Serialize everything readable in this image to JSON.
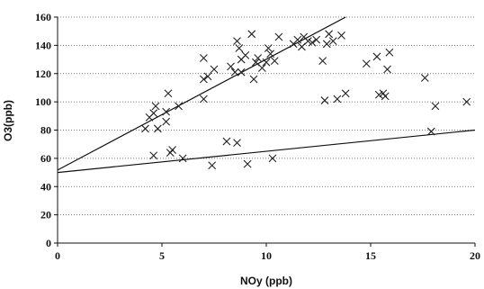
{
  "chart_data": {
    "type": "scatter",
    "title": "",
    "xlabel": "NOy  (ppb)",
    "ylabel": "O3(ppb)",
    "xlim": [
      0,
      20
    ],
    "ylim": [
      0,
      160
    ],
    "x_ticks": [
      0,
      5,
      10,
      15,
      20
    ],
    "y_ticks": [
      0,
      20,
      40,
      60,
      80,
      100,
      120,
      140,
      160
    ],
    "grid": "horizontal dotted",
    "marker": "x",
    "points": [
      {
        "x": 4.2,
        "y": 81
      },
      {
        "x": 4.4,
        "y": 89
      },
      {
        "x": 4.6,
        "y": 92
      },
      {
        "x": 4.6,
        "y": 62
      },
      {
        "x": 4.7,
        "y": 97
      },
      {
        "x": 4.8,
        "y": 81
      },
      {
        "x": 5.2,
        "y": 86
      },
      {
        "x": 5.2,
        "y": 93
      },
      {
        "x": 5.3,
        "y": 106
      },
      {
        "x": 5.4,
        "y": 64
      },
      {
        "x": 5.5,
        "y": 66
      },
      {
        "x": 5.8,
        "y": 97
      },
      {
        "x": 6.0,
        "y": 60
      },
      {
        "x": 7.0,
        "y": 131
      },
      {
        "x": 7.0,
        "y": 116
      },
      {
        "x": 7.0,
        "y": 102
      },
      {
        "x": 7.2,
        "y": 118
      },
      {
        "x": 7.4,
        "y": 55
      },
      {
        "x": 7.5,
        "y": 123
      },
      {
        "x": 8.1,
        "y": 72
      },
      {
        "x": 8.3,
        "y": 125
      },
      {
        "x": 8.5,
        "y": 121
      },
      {
        "x": 8.6,
        "y": 143
      },
      {
        "x": 8.6,
        "y": 71
      },
      {
        "x": 8.7,
        "y": 138
      },
      {
        "x": 8.8,
        "y": 130
      },
      {
        "x": 8.8,
        "y": 121
      },
      {
        "x": 9.0,
        "y": 133
      },
      {
        "x": 9.1,
        "y": 56
      },
      {
        "x": 9.3,
        "y": 148
      },
      {
        "x": 9.4,
        "y": 116
      },
      {
        "x": 9.5,
        "y": 128
      },
      {
        "x": 9.6,
        "y": 131
      },
      {
        "x": 9.8,
        "y": 124
      },
      {
        "x": 10.0,
        "y": 128
      },
      {
        "x": 10.1,
        "y": 138
      },
      {
        "x": 10.2,
        "y": 134
      },
      {
        "x": 10.3,
        "y": 60
      },
      {
        "x": 10.4,
        "y": 129
      },
      {
        "x": 10.6,
        "y": 146
      },
      {
        "x": 11.3,
        "y": 141
      },
      {
        "x": 11.5,
        "y": 144
      },
      {
        "x": 11.7,
        "y": 139
      },
      {
        "x": 11.8,
        "y": 146
      },
      {
        "x": 12.0,
        "y": 143
      },
      {
        "x": 12.2,
        "y": 142
      },
      {
        "x": 12.4,
        "y": 144
      },
      {
        "x": 12.7,
        "y": 129
      },
      {
        "x": 12.8,
        "y": 101
      },
      {
        "x": 12.9,
        "y": 141
      },
      {
        "x": 13.0,
        "y": 148
      },
      {
        "x": 13.2,
        "y": 143
      },
      {
        "x": 13.4,
        "y": 102
      },
      {
        "x": 13.6,
        "y": 147
      },
      {
        "x": 13.8,
        "y": 106
      },
      {
        "x": 14.8,
        "y": 127
      },
      {
        "x": 15.3,
        "y": 132
      },
      {
        "x": 15.4,
        "y": 105
      },
      {
        "x": 15.6,
        "y": 106
      },
      {
        "x": 15.7,
        "y": 104
      },
      {
        "x": 15.8,
        "y": 123
      },
      {
        "x": 15.9,
        "y": 135
      },
      {
        "x": 17.6,
        "y": 117
      },
      {
        "x": 17.9,
        "y": 79
      },
      {
        "x": 18.1,
        "y": 97
      },
      {
        "x": 19.6,
        "y": 100
      }
    ],
    "lines": [
      {
        "x": [
          0,
          13.8
        ],
        "y": [
          51.7,
          160
        ]
      },
      {
        "x": [
          0,
          20
        ],
        "y": [
          50,
          80
        ]
      }
    ]
  }
}
